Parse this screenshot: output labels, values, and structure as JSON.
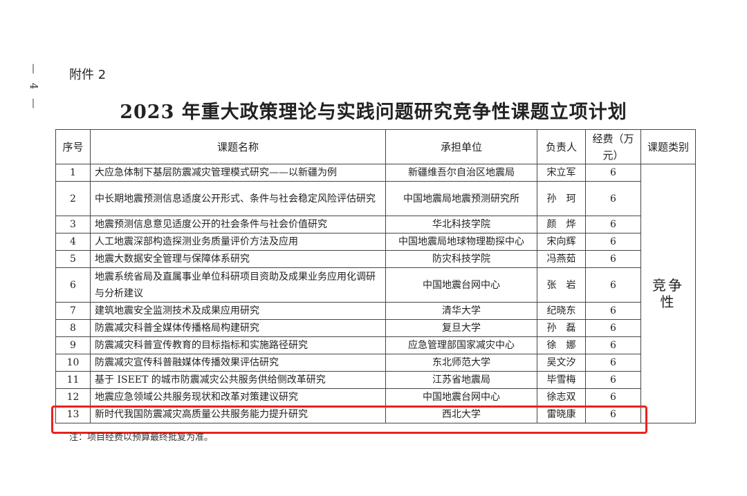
{
  "page_number": "— 4 —",
  "attachment": "附件 2",
  "title": "2023 年重大政策理论与实践问题研究竞争性课题立项计划",
  "headers": {
    "no": "序号",
    "name": "课题名称",
    "unit": "承担单位",
    "leader": "负责人",
    "fee": "经费（万元）",
    "category": "课题类别"
  },
  "category": "竞争性",
  "rows": [
    {
      "no": "1",
      "name": "大应急体制下基层防震减灾管理模式研究——以新疆为例",
      "unit": "新疆维吾尔自治区地震局",
      "leader": "宋立军",
      "fee": "6"
    },
    {
      "no": "2",
      "name": "中长期地震预测信息适度公开形式、条件与社会稳定风险评估研究",
      "unit": "中国地震局地震预测研究所",
      "leader": "孙　珂",
      "fee": "6"
    },
    {
      "no": "3",
      "name": "地震预测信息意见适度公开的社会条件与社会价值研究",
      "unit": "华北科技学院",
      "leader": "颜　烨",
      "fee": "6"
    },
    {
      "no": "4",
      "name": "人工地震深部构造探测业务质量评价方法及应用",
      "unit": "中国地震局地球物理勘探中心",
      "leader": "宋向辉",
      "fee": "6"
    },
    {
      "no": "5",
      "name": "地震大数据安全管理与保障体系研究",
      "unit": "防灾科技学院",
      "leader": "冯燕茹",
      "fee": "6"
    },
    {
      "no": "6",
      "name": "地震系统省局及直属事业单位科研项目资助及成果业务应用化调研与分析建议",
      "unit": "中国地震台网中心",
      "leader": "张　岩",
      "fee": "6"
    },
    {
      "no": "7",
      "name": "建筑地震安全监测技术及成果应用研究",
      "unit": "清华大学",
      "leader": "纪晓东",
      "fee": "6"
    },
    {
      "no": "8",
      "name": "防震减灾科普全媒体传播格局构建研究",
      "unit": "复旦大学",
      "leader": "孙　磊",
      "fee": "6"
    },
    {
      "no": "9",
      "name": "防震减灾科普宣传教育的目标指标和实施路径研究",
      "unit": "应急管理部国家减灾中心",
      "leader": "徐　娜",
      "fee": "6"
    },
    {
      "no": "10",
      "name": "防震减灾宣传科普融媒体传播效果评估研究",
      "unit": "东北师范大学",
      "leader": "吴文汐",
      "fee": "6"
    },
    {
      "no": "11",
      "name": "基于 ISEET 的城市防震减灾公共服务供给侧改革研究",
      "unit": "江苏省地震局",
      "leader": "毕雪梅",
      "fee": "6"
    },
    {
      "no": "12",
      "name": "地震应急领域公共服务现状和改革对策建议研究",
      "unit": "中国地震台网中心",
      "leader": "徐志双",
      "fee": "6"
    },
    {
      "no": "13",
      "name": "新时代我国防震减灾高质量公共服务能力提升研究",
      "unit": "西北大学",
      "leader": "雷晓康",
      "fee": "6"
    }
  ],
  "note": "注：项目经费以预算最终批复为准。",
  "highlight_color": "#e8231c"
}
